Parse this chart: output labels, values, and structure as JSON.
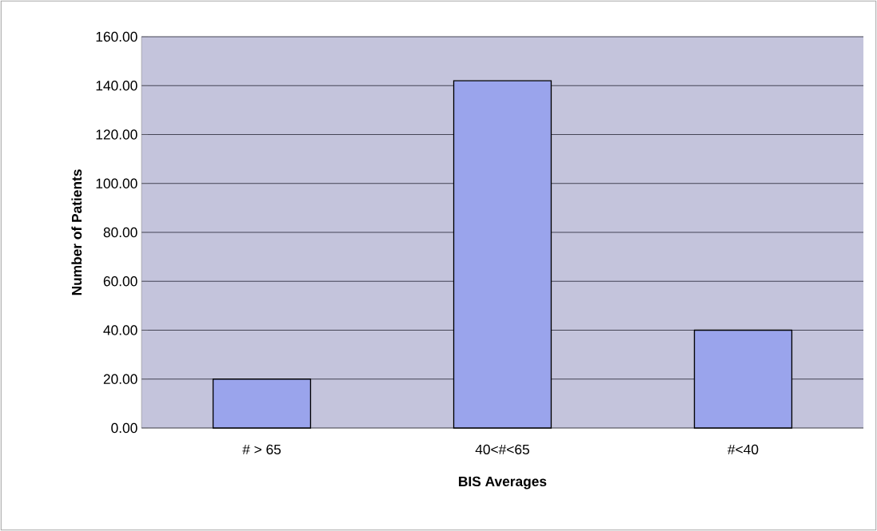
{
  "chart_data": {
    "type": "bar",
    "xlabel": "BIS Averages",
    "ylabel": "Number of Patients",
    "categories": [
      "# > 65",
      "40<#<65",
      "#<40"
    ],
    "values": [
      20,
      142,
      40
    ],
    "color": "#9aa4ec",
    "ylim": [
      0,
      160
    ],
    "yticks": [
      {
        "value": 0,
        "label": "0.00"
      },
      {
        "value": 20,
        "label": "20.00"
      },
      {
        "value": 40,
        "label": "40.00"
      },
      {
        "value": 60,
        "label": "60.00"
      },
      {
        "value": 80,
        "label": "80.00"
      },
      {
        "value": 100,
        "label": "100.00"
      },
      {
        "value": 120,
        "label": "120.00"
      },
      {
        "value": 140,
        "label": "140.00"
      },
      {
        "value": 160,
        "label": "160.00"
      }
    ],
    "grid": "y"
  }
}
